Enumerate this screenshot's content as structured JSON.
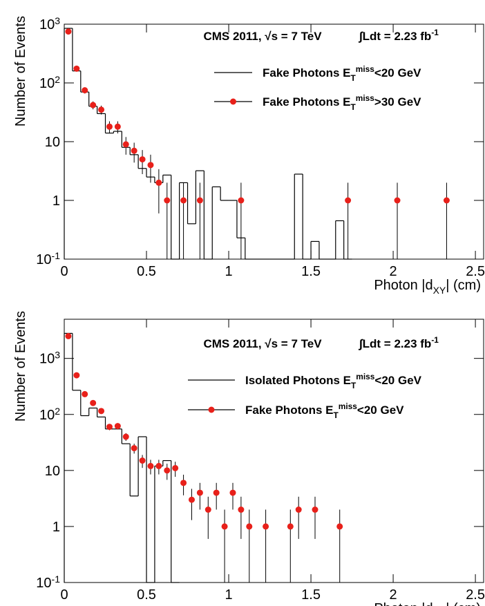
{
  "chart_data": [
    {
      "type": "histogram",
      "annotations": [
        "CMS 2011, √s = 7 TeV",
        "∫Ldt = 2.23 fb^{-1}"
      ],
      "x_label": "Photon |d_{XY}| (cm)",
      "y_label": "Number of Events",
      "xlim": [
        0,
        2.55
      ],
      "xticks": [
        0,
        0.5,
        1,
        1.5,
        2,
        2.5
      ],
      "ylim": [
        0.1,
        1000
      ],
      "log_y": true,
      "yticks": [
        {
          "value": 0.1,
          "label": "10^{-1}"
        },
        1,
        10,
        {
          "value": 100,
          "label": "10^{2}"
        },
        {
          "value": 1000,
          "label": "10^{3}"
        }
      ],
      "legend": "top-right",
      "series": [
        {
          "name": "Fake Photons E_{T}^{miss}<20 GeV",
          "color": "#000000",
          "style": "step",
          "bins": [
            0,
            0.05,
            0.1,
            0.15,
            0.2,
            0.25,
            0.3,
            0.35,
            0.4,
            0.45,
            0.5,
            0.55,
            0.6,
            0.65,
            0.7,
            0.75,
            0.8,
            0.85,
            0.9,
            0.95,
            1,
            1.05,
            1.1,
            1.15,
            1.2,
            1.25,
            1.3,
            1.35,
            1.4,
            1.45,
            1.5,
            1.55,
            1.6,
            1.65,
            1.7,
            1.75
          ],
          "values": [
            850,
            160,
            70,
            40,
            30,
            14,
            15,
            8,
            6,
            3.5,
            2.5,
            2,
            2.7,
            0,
            2,
            0.4,
            3.2,
            0,
            1.7,
            1,
            1,
            0.23,
            0,
            0,
            0,
            0,
            0,
            0,
            2.8,
            0,
            0.2,
            0,
            0,
            0.45,
            0
          ]
        },
        {
          "name": "Fake Photons E_{T}^{miss}>30 GeV",
          "color": "#e8201a",
          "style": "points",
          "x": [
            0.025,
            0.075,
            0.125,
            0.175,
            0.225,
            0.275,
            0.325,
            0.375,
            0.425,
            0.475,
            0.525,
            0.575,
            0.625,
            0.725,
            0.825,
            1.075,
            1.725,
            2.025,
            2.325
          ],
          "values": [
            750,
            175,
            75,
            42,
            35,
            18,
            18,
            9,
            7,
            5,
            4,
            2,
            1,
            1,
            1,
            1,
            1,
            1,
            1
          ],
          "errors": [
            27,
            13,
            9,
            6.5,
            6,
            4.2,
            4.2,
            3,
            2.6,
            2.2,
            2,
            1.4,
            1,
            1,
            1,
            1,
            1,
            1,
            1
          ]
        }
      ]
    },
    {
      "type": "histogram",
      "annotations": [
        "CMS 2011, √s = 7 TeV",
        "∫Ldt = 2.23 fb^{-1}"
      ],
      "x_label": "Photon |d_{XY}| (cm)",
      "y_label": "Number of Events",
      "xlim": [
        0,
        2.55
      ],
      "xticks": [
        0,
        0.5,
        1,
        1.5,
        2,
        2.5
      ],
      "ylim": [
        0.1,
        5000
      ],
      "log_y": true,
      "yticks": [
        {
          "value": 0.1,
          "label": "10^{-1}"
        },
        1,
        10,
        {
          "value": 100,
          "label": "10^{2}"
        },
        {
          "value": 1000,
          "label": "10^{3}"
        }
      ],
      "legend": "top-right",
      "series": [
        {
          "name": "Isolated Photons E_{T}^{miss}<20 GeV",
          "color": "#000000",
          "style": "step",
          "bins": [
            0,
            0.05,
            0.1,
            0.15,
            0.2,
            0.25,
            0.3,
            0.35,
            0.4,
            0.45,
            0.5,
            0.55,
            0.6,
            0.65,
            0.7
          ],
          "values": [
            2800,
            270,
            95,
            130,
            90,
            55,
            55,
            30,
            3.5,
            40,
            0,
            12,
            15,
            0
          ]
        },
        {
          "name": "Fake Photons E_{T}^{miss}<20 GeV",
          "color": "#e8201a",
          "style": "points",
          "x": [
            0.025,
            0.075,
            0.125,
            0.175,
            0.225,
            0.275,
            0.325,
            0.375,
            0.425,
            0.475,
            0.525,
            0.575,
            0.625,
            0.675,
            0.725,
            0.775,
            0.825,
            0.875,
            0.925,
            0.975,
            1.025,
            1.075,
            1.125,
            1.225,
            1.375,
            1.425,
            1.525,
            1.675
          ],
          "values": [
            2500,
            500,
            230,
            160,
            115,
            60,
            62,
            40,
            25,
            15,
            12,
            12,
            10,
            11,
            6,
            3,
            4,
            2,
            4,
            1,
            4,
            2,
            1,
            1,
            1,
            2,
            2,
            1
          ],
          "errors": [
            50,
            22,
            15,
            12.6,
            10.7,
            7.7,
            7.9,
            6.3,
            5,
            3.9,
            3.5,
            3.5,
            3.2,
            3.3,
            2.4,
            1.7,
            2,
            1.4,
            2,
            1,
            2,
            1.4,
            1,
            1,
            1,
            1.4,
            1.4,
            1
          ]
        }
      ]
    }
  ]
}
